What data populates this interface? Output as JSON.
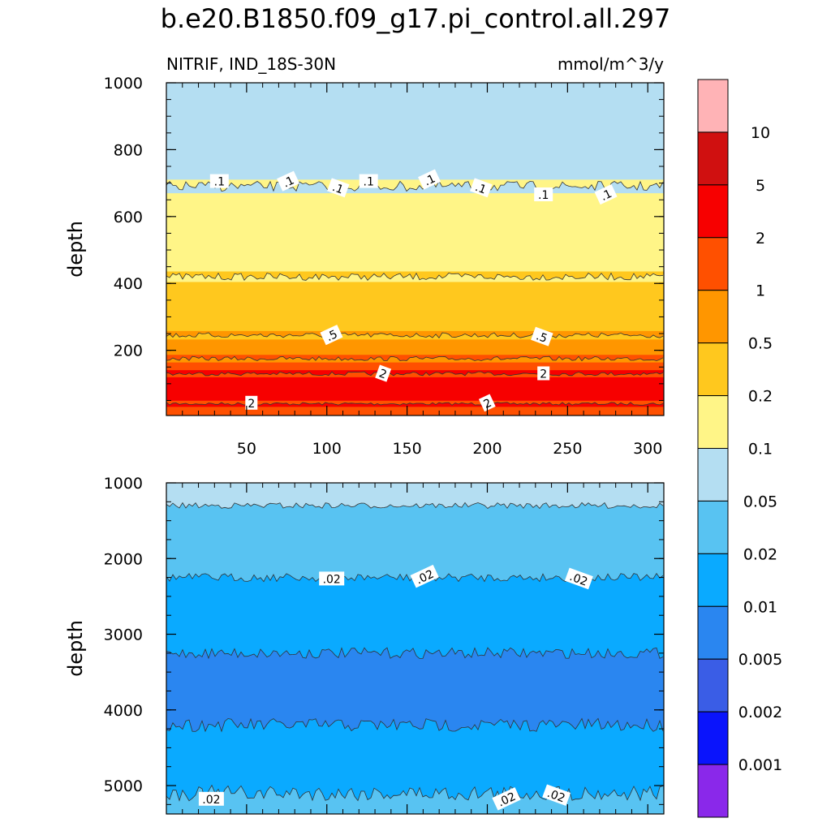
{
  "title": "b.e20.B1850.f09_g17.pi_control.all.297",
  "chart_data": [
    {
      "type": "contour",
      "panel": "upper",
      "variable_label": "NITRIF, IND_18S-30N",
      "units_label": "mmol/m^3/y",
      "ylabel": "depth",
      "xlim": [
        0,
        310
      ],
      "ylim": [
        1000,
        5
      ],
      "y_inverted": true,
      "x_ticks": [
        "50",
        "100",
        "150",
        "200",
        "250",
        "300"
      ],
      "y_ticks": [
        "200",
        "400",
        "600",
        "800",
        "1000"
      ],
      "bands": [
        {
          "from_depth": 5,
          "to_depth": 40,
          "value_range": "1-2"
        },
        {
          "from_depth": 40,
          "to_depth": 130,
          "value_range": "2-5"
        },
        {
          "from_depth": 130,
          "to_depth": 175,
          "value_range": "1-2"
        },
        {
          "from_depth": 175,
          "to_depth": 245,
          "value_range": "0.5-1"
        },
        {
          "from_depth": 245,
          "to_depth": 420,
          "value_range": "0.2-0.5"
        },
        {
          "from_depth": 420,
          "to_depth": 690,
          "value_range": "0.1-0.2"
        },
        {
          "from_depth": 690,
          "to_depth": 1000,
          "value_range": "0.05-0.1"
        }
      ],
      "contour_labels": [
        {
          "text": "2",
          "x": 53,
          "depth": 42
        },
        {
          "text": "2",
          "x": 200,
          "depth": 42
        },
        {
          "text": "2",
          "x": 135,
          "depth": 130
        },
        {
          "text": "2",
          "x": 235,
          "depth": 130
        },
        {
          "text": ".5",
          "x": 103,
          "depth": 245
        },
        {
          "text": ".5",
          "x": 234,
          "depth": 240
        },
        {
          "text": ".1",
          "x": 33,
          "depth": 705
        },
        {
          "text": ".1",
          "x": 76,
          "depth": 705
        },
        {
          "text": ".1",
          "x": 107,
          "depth": 685
        },
        {
          "text": ".1",
          "x": 126,
          "depth": 705
        },
        {
          "text": ".1",
          "x": 164,
          "depth": 710
        },
        {
          "text": ".1",
          "x": 196,
          "depth": 685
        },
        {
          "text": ".1",
          "x": 235,
          "depth": 665
        },
        {
          "text": ".1",
          "x": 274,
          "depth": 665
        }
      ]
    },
    {
      "type": "contour",
      "panel": "lower",
      "ylabel": "depth",
      "xlim": [
        0,
        310
      ],
      "ylim": [
        1000,
        5375
      ],
      "y_inverted": true,
      "y_ticks": [
        "1000",
        "2000",
        "3000",
        "4000",
        "5000"
      ],
      "bands": [
        {
          "from_depth": 1000,
          "to_depth": 1300,
          "value_range": "0.05-0.1"
        },
        {
          "from_depth": 1300,
          "to_depth": 2250,
          "value_range": "0.02-0.05"
        },
        {
          "from_depth": 2250,
          "to_depth": 3250,
          "value_range": "0.01-0.02"
        },
        {
          "from_depth": 3250,
          "to_depth": 4200,
          "value_range": "0.005-0.01"
        },
        {
          "from_depth": 4200,
          "to_depth": 5100,
          "value_range": "0.01-0.02"
        },
        {
          "from_depth": 5100,
          "to_depth": 5375,
          "value_range": "0.02-0.05"
        }
      ],
      "contour_labels": [
        {
          "text": ".02",
          "x": 103,
          "depth": 2270
        },
        {
          "text": ".02",
          "x": 161,
          "depth": 2240
        },
        {
          "text": ".02",
          "x": 257,
          "depth": 2270
        },
        {
          "text": ".02",
          "x": 28,
          "depth": 5180
        },
        {
          "text": ".02",
          "x": 212,
          "depth": 5180
        },
        {
          "text": ".02",
          "x": 243,
          "depth": 5130
        }
      ]
    }
  ],
  "colorbar": {
    "colors": [
      "#ffb3b6",
      "#d01010",
      "#f70000",
      "#ff5000",
      "#ff9600",
      "#ffc81e",
      "#fff587",
      "#b4def2",
      "#58c3f2",
      "#0aaaff",
      "#2a86f0",
      "#3a5de6",
      "#0a14fc",
      "#8a28ea"
    ],
    "labels": [
      "10",
      "5",
      "2",
      "1",
      "0.5",
      "0.2",
      "0.1",
      "0.05",
      "0.02",
      "0.01",
      "0.005",
      "0.002",
      "0.001"
    ]
  },
  "level_colors": {
    "1-2": "#ff5000",
    "2-5": "#f70000",
    "0.5-1": "#ff9600",
    "0.2-0.5": "#ffc81e",
    "0.1-0.2": "#fff587",
    "0.05-0.1": "#b4def2",
    "0.02-0.05": "#58c3f2",
    "0.01-0.02": "#0aaaff",
    "0.005-0.01": "#2a86f0"
  }
}
